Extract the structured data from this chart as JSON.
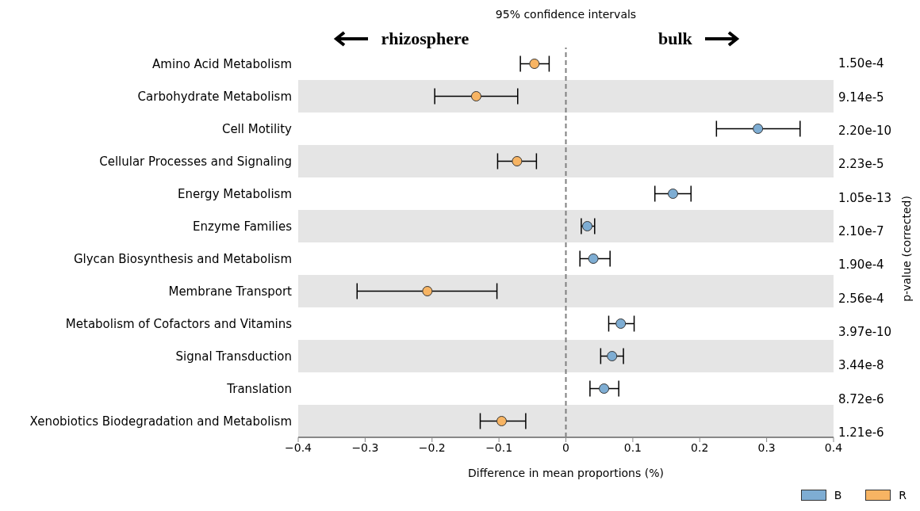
{
  "chart_data": {
    "type": "scatter",
    "orientation": "horizontal",
    "title": "95% confidence intervals",
    "xlabel": "Difference in mean proportions (%)",
    "categories": [
      "Amino Acid Metabolism",
      "Carbohydrate Metabolism",
      "Cell Motility",
      "Cellular Processes and Signaling",
      "Energy Metabolism",
      "Enzyme Families",
      "Glycan Biosynthesis and Metabolism",
      "Membrane Transport",
      "Metabolism of Cofactors and Vitamins",
      "Signal Transduction",
      "Translation",
      "Xenobiotics Biodegradation and Metabolism"
    ],
    "series": [
      {
        "name": "B",
        "color": "#7eadd3",
        "values": [
          null,
          null,
          0.287,
          null,
          0.16,
          0.032,
          0.041,
          null,
          0.082,
          0.069,
          0.057,
          null
        ],
        "errors": [
          null,
          null,
          [
            0.225,
            0.35
          ],
          null,
          [
            0.133,
            0.187
          ],
          [
            0.023,
            0.043
          ],
          [
            0.021,
            0.066
          ],
          null,
          [
            0.064,
            0.102
          ],
          [
            0.052,
            0.086
          ],
          [
            0.036,
            0.079
          ],
          null
        ]
      },
      {
        "name": "R",
        "color": "#f7b463",
        "values": [
          -0.047,
          -0.134,
          null,
          -0.073,
          null,
          null,
          null,
          -0.207,
          null,
          null,
          null,
          -0.096
        ],
        "errors": [
          [
            -0.068,
            -0.025
          ],
          [
            -0.196,
            -0.072
          ],
          null,
          [
            -0.102,
            -0.044
          ],
          null,
          null,
          null,
          [
            -0.312,
            -0.103
          ],
          null,
          null,
          null,
          [
            -0.128,
            -0.06
          ]
        ]
      }
    ],
    "xlim": [
      -0.4,
      0.4
    ],
    "xticks": [
      {
        "value": -0.4,
        "label": "−0.4"
      },
      {
        "value": -0.3,
        "label": "−0.3"
      },
      {
        "value": -0.2,
        "label": "−0.2"
      },
      {
        "value": -0.1,
        "label": "−0.1"
      },
      0.0,
      0.1,
      0.2,
      0.3,
      0.4
    ],
    "ref_lines": [
      {
        "axis": "x",
        "value": 0,
        "color": "#808080",
        "line_style": "dashed"
      }
    ],
    "bands": [
      {
        "axis": "y",
        "from": "Carbohydrate Metabolism",
        "to": "Carbohydrate Metabolism",
        "color": "#e5e5e5"
      },
      {
        "axis": "y",
        "from": "Cellular Processes and Signaling",
        "to": "Cellular Processes and Signaling",
        "color": "#e5e5e5"
      },
      {
        "axis": "y",
        "from": "Enzyme Families",
        "to": "Enzyme Families",
        "color": "#e5e5e5"
      },
      {
        "axis": "y",
        "from": "Membrane Transport",
        "to": "Membrane Transport",
        "color": "#e5e5e5"
      },
      {
        "axis": "y",
        "from": "Signal Transduction",
        "to": "Signal Transduction",
        "color": "#e5e5e5"
      },
      {
        "axis": "y",
        "from": "Xenobiotics Biodegradation and Metabolism",
        "to": "Xenobiotics Biodegradation and Metabolism",
        "color": "#e5e5e5"
      }
    ],
    "annotations": [
      "rhizosphere",
      "bulk",
      "1.50e-4",
      "9.14e-5",
      "2.20e-10",
      "2.23e-5",
      "1.05e-13",
      "2.10e-7",
      "1.90e-4",
      "2.56e-4",
      "3.97e-10",
      "3.44e-8",
      "8.72e-6",
      "1.21e-6",
      "p-value (corrected)"
    ],
    "marker": "circle",
    "grid": false,
    "legend": "bottom right"
  }
}
